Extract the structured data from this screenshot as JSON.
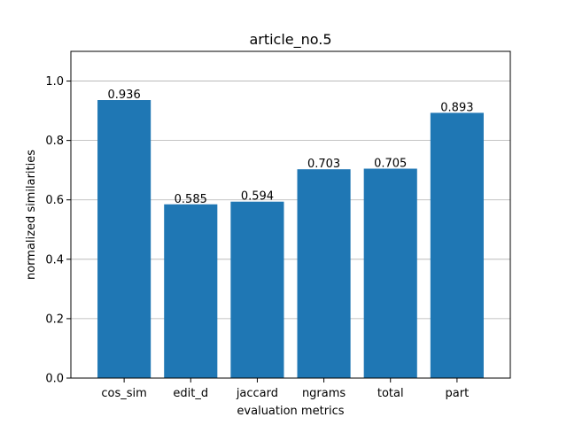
{
  "chart_data": {
    "type": "bar",
    "title": "article_no.5",
    "xlabel": "evaluation metrics",
    "ylabel": "normalized similarities",
    "categories": [
      "cos_sim",
      "edit_d",
      "jaccard",
      "ngrams",
      "total",
      "part"
    ],
    "values": [
      0.936,
      0.585,
      0.594,
      0.703,
      0.705,
      0.893
    ],
    "value_labels": [
      "0.936",
      "0.585",
      "0.594",
      "0.703",
      "0.705",
      "0.893"
    ],
    "ylim": [
      0,
      1.1
    ],
    "yticks": [
      0.0,
      0.2,
      0.4,
      0.6,
      0.8,
      1.0
    ],
    "ytick_labels": [
      "0.0",
      "0.2",
      "0.4",
      "0.6",
      "0.8",
      "1.0"
    ],
    "grid": "horizontal",
    "bar_color": "#1f77b4",
    "grid_color": "#b0b0b0"
  }
}
